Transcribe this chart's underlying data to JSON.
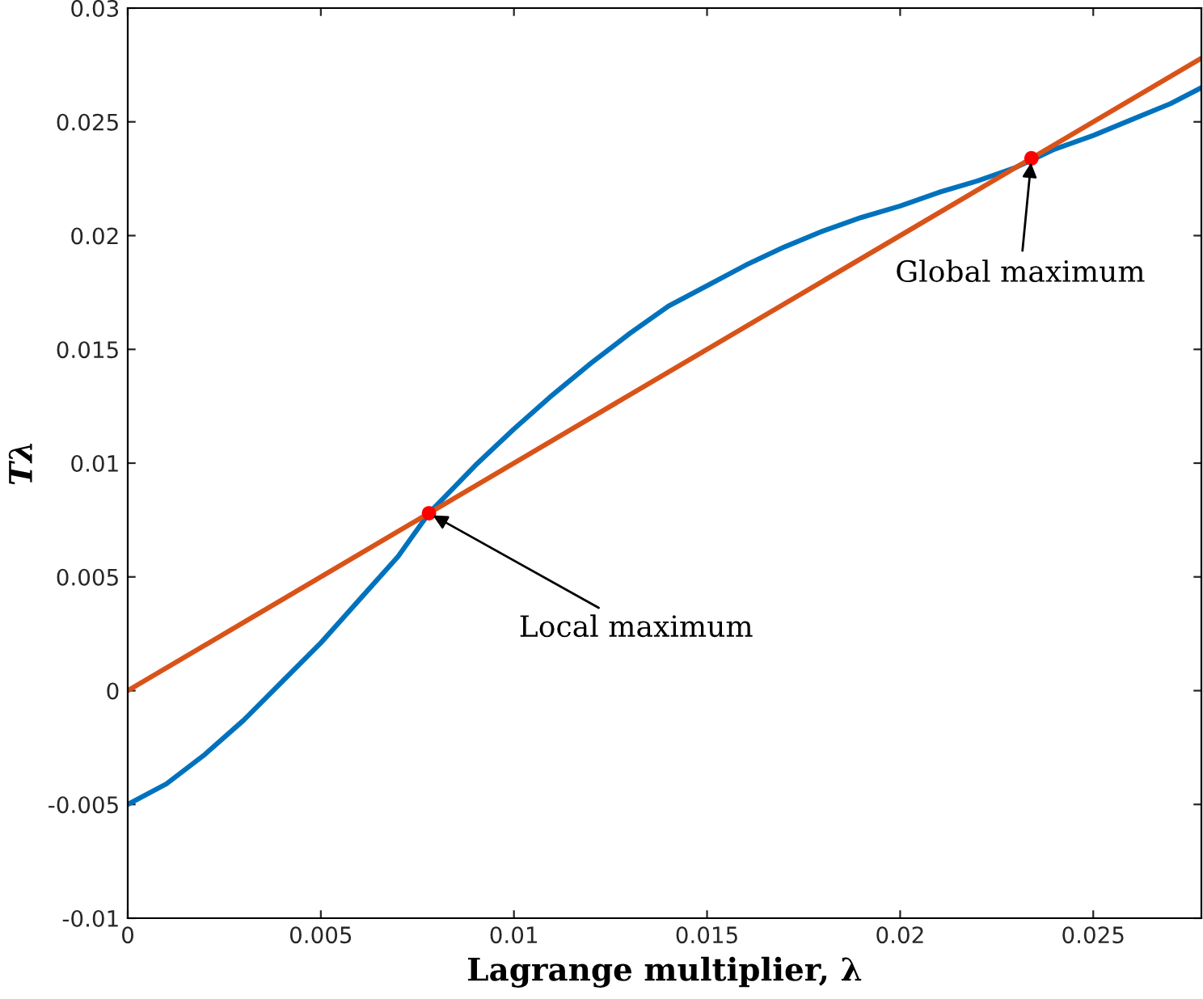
{
  "chart_data": {
    "type": "line",
    "xlabel": "Lagrange multiplier, λ",
    "ylabel": "Tλ",
    "xlim": [
      0,
      0.0278
    ],
    "ylim": [
      -0.01,
      0.03
    ],
    "xticks": [
      0,
      0.005,
      0.01,
      0.015,
      0.02,
      0.025
    ],
    "yticks": [
      -0.01,
      -0.005,
      0,
      0.005,
      0.01,
      0.015,
      0.02,
      0.025,
      0.03
    ],
    "grid": false,
    "legend": false,
    "series": [
      {
        "color": "#0072bd",
        "x": [
          0,
          0.001,
          0.002,
          0.003,
          0.004,
          0.005,
          0.006,
          0.007,
          0.0078,
          0.009,
          0.01,
          0.011,
          0.012,
          0.013,
          0.014,
          0.015,
          0.016,
          0.017,
          0.018,
          0.019,
          0.02,
          0.021,
          0.022,
          0.023,
          0.024,
          0.025,
          0.026,
          0.027,
          0.0278
        ],
        "values": [
          -0.005,
          -0.0041,
          -0.0028,
          -0.0013,
          0.0004,
          0.0021,
          0.004,
          0.0059,
          0.0078,
          0.0099,
          0.0115,
          0.013,
          0.0144,
          0.0157,
          0.0169,
          0.0178,
          0.0187,
          0.0195,
          0.0202,
          0.0208,
          0.0213,
          0.0219,
          0.0224,
          0.023,
          0.0238,
          0.0244,
          0.0251,
          0.0258,
          0.0265
        ]
      },
      {
        "color": "#d95319",
        "x": [
          0,
          0.0278
        ],
        "values": [
          0,
          0.0278
        ]
      },
      {
        "type": "scatter",
        "color": "#ff0000",
        "marker": "circle",
        "x": [
          0.0078,
          0.0234
        ],
        "values": [
          0.0078,
          0.0234
        ]
      }
    ],
    "annotations": [
      {
        "text": "Local maximum",
        "x": 0.0078,
        "y": 0.0078
      },
      {
        "text": "Global maximum",
        "x": 0.0234,
        "y": 0.0234
      }
    ]
  }
}
